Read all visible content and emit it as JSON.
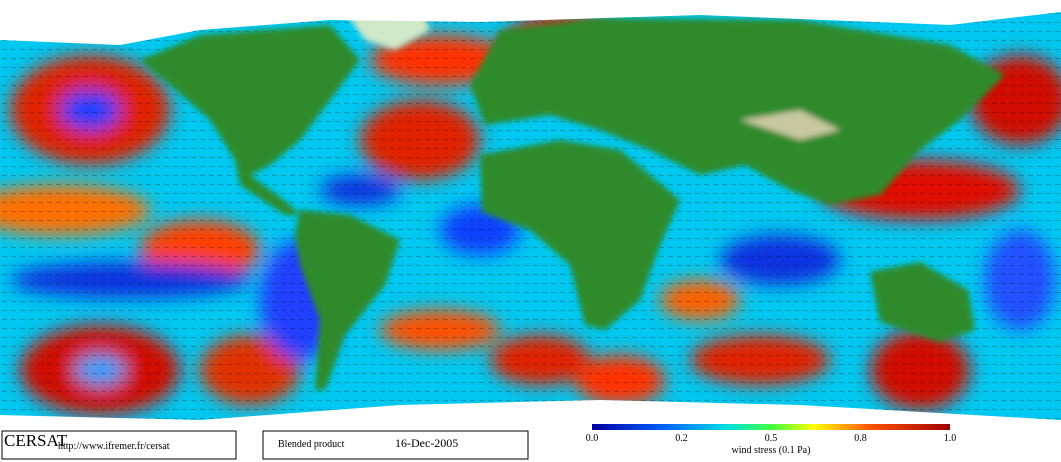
{
  "map": {
    "credit": "CERSAT",
    "url": "http://www.ifremer.fr/cersat"
  },
  "product": {
    "name": "Blended product",
    "date": "16-Dec-2005"
  },
  "colorbar": {
    "ticks": [
      "0.0",
      "0.2",
      "0.5",
      "0.8",
      "1.0"
    ],
    "label": "wind stress (0.1 Pa)"
  }
}
